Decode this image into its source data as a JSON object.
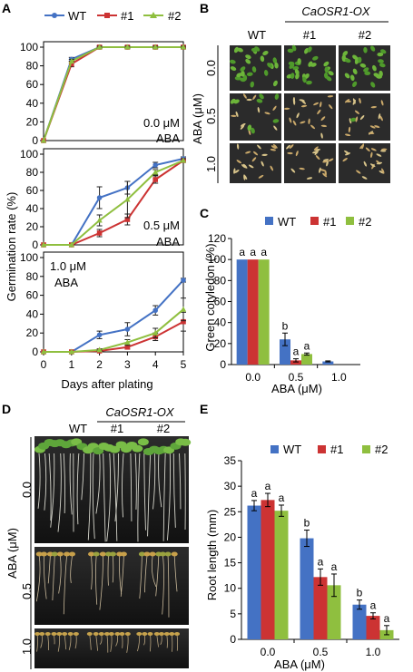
{
  "panels": {
    "A": "A",
    "B": "B",
    "C": "C",
    "D": "D",
    "E": "E"
  },
  "colors": {
    "WT": "#4472c4",
    "#1": "#cc3333",
    "#2": "#8fbf3f"
  },
  "panel_A": {
    "legend": [
      "WT",
      "#1",
      "#2"
    ],
    "ylabel": "Germination rate (%)",
    "xlabel": "Days after plating",
    "x_ticks": [
      "0",
      "1",
      "2",
      "3",
      "4",
      "5"
    ],
    "conditions": [
      {
        "label_line1": "0.0 μM",
        "label_line2": "ABA"
      },
      {
        "label_line1": "0.5 μM",
        "label_line2": "ABA"
      },
      {
        "label_line1": "1.0 μM",
        "label_line2": "ABA"
      }
    ]
  },
  "panel_B": {
    "header_group": "CaOSR1-OX",
    "columns": [
      "WT",
      "#1",
      "#2"
    ],
    "row_axis": "ABA (μM)",
    "rows": [
      "0.0",
      "0.5",
      "1.0"
    ]
  },
  "panel_C": {
    "legend": [
      "WT",
      "#1",
      "#2"
    ],
    "ylabel": "Green cotyledon (%)",
    "xlabel": "ABA (μM)"
  },
  "panel_D": {
    "header_group": "CaOSR1-OX",
    "columns": [
      "WT",
      "#1",
      "#2"
    ],
    "row_axis": "ABA (μM)",
    "rows": [
      "0.0",
      "0.5",
      "1.0"
    ]
  },
  "panel_E": {
    "legend": [
      "WT",
      "#1",
      "#2"
    ],
    "ylabel": "Root  length (mm)",
    "xlabel": "ABA (μM)"
  },
  "chart_data": [
    {
      "id": "A-0.0",
      "type": "line",
      "x": [
        0,
        1,
        2,
        3,
        4,
        5
      ],
      "ylim": [
        0,
        100
      ],
      "y_ticks": [
        0,
        20,
        40,
        60,
        80,
        100
      ],
      "series": [
        {
          "name": "WT",
          "values": [
            0,
            87,
            100,
            100,
            100,
            100
          ],
          "err": [
            0,
            2,
            1,
            1,
            1,
            1
          ]
        },
        {
          "name": "#1",
          "values": [
            0,
            82,
            100,
            100,
            100,
            100
          ],
          "err": [
            0,
            3,
            1,
            1,
            1,
            1
          ]
        },
        {
          "name": "#2",
          "values": [
            0,
            85,
            100,
            100,
            100,
            100
          ],
          "err": [
            0,
            2,
            1,
            1,
            1,
            1
          ]
        }
      ]
    },
    {
      "id": "A-0.5",
      "type": "line",
      "x": [
        0,
        1,
        2,
        3,
        4,
        5
      ],
      "ylim": [
        0,
        100
      ],
      "y_ticks": [
        0,
        20,
        40,
        60,
        80,
        100
      ],
      "series": [
        {
          "name": "WT",
          "values": [
            0,
            0,
            52,
            63,
            88,
            95
          ],
          "err": [
            0,
            0,
            12,
            7,
            3,
            2
          ]
        },
        {
          "name": "#1",
          "values": [
            0,
            0,
            13,
            28,
            72,
            93
          ],
          "err": [
            0,
            0,
            4,
            6,
            4,
            2
          ]
        },
        {
          "name": "#2",
          "values": [
            0,
            0,
            27,
            50,
            80,
            93
          ],
          "err": [
            0,
            0,
            6,
            20,
            3,
            2
          ]
        }
      ]
    },
    {
      "id": "A-1.0",
      "type": "line",
      "x": [
        0,
        1,
        2,
        3,
        4,
        5
      ],
      "ylim": [
        0,
        100
      ],
      "y_ticks": [
        0,
        20,
        40,
        60,
        80,
        100
      ],
      "series": [
        {
          "name": "WT",
          "values": [
            0,
            0,
            18,
            24,
            44,
            76
          ],
          "err": [
            0,
            0,
            4,
            7,
            5,
            2
          ]
        },
        {
          "name": "#1",
          "values": [
            0,
            0,
            1,
            5,
            16,
            32
          ],
          "err": [
            0,
            0,
            1,
            2,
            4,
            10
          ]
        },
        {
          "name": "#2",
          "values": [
            0,
            0,
            2,
            10,
            20,
            45
          ],
          "err": [
            0,
            0,
            1,
            3,
            5,
            12
          ]
        }
      ]
    },
    {
      "id": "C",
      "type": "bar",
      "categories": [
        "0.0",
        "0.5",
        "1.0"
      ],
      "ylim": [
        0,
        120
      ],
      "y_ticks": [
        0,
        20,
        40,
        60,
        80,
        100,
        120
      ],
      "series": [
        {
          "name": "WT",
          "values": [
            100,
            24,
            3
          ],
          "err": [
            0,
            6,
            0.5
          ],
          "labels": [
            "a",
            "b",
            ""
          ]
        },
        {
          "name": "#1",
          "values": [
            100,
            4,
            0
          ],
          "err": [
            0,
            1.5,
            0
          ],
          "labels": [
            "a",
            "a",
            ""
          ]
        },
        {
          "name": "#2",
          "values": [
            100,
            10,
            0
          ],
          "err": [
            0,
            1,
            0
          ],
          "labels": [
            "a",
            "a",
            ""
          ]
        }
      ]
    },
    {
      "id": "E",
      "type": "bar",
      "categories": [
        "0.0",
        "0.5",
        "1.0"
      ],
      "ylim": [
        0,
        35
      ],
      "y_ticks": [
        0,
        5,
        10,
        15,
        20,
        25,
        30,
        35
      ],
      "series": [
        {
          "name": "WT",
          "values": [
            26.2,
            19.8,
            6.8
          ],
          "err": [
            1.0,
            1.6,
            0.9
          ],
          "labels": [
            "a",
            "b",
            "b"
          ]
        },
        {
          "name": "#1",
          "values": [
            27.3,
            12.2,
            4.6
          ],
          "err": [
            1.3,
            1.6,
            0.6
          ],
          "labels": [
            "a",
            "a",
            "a"
          ]
        },
        {
          "name": "#2",
          "values": [
            25.2,
            10.6,
            1.8
          ],
          "err": [
            1.1,
            2.2,
            0.9
          ],
          "labels": [
            "a",
            "a",
            "a"
          ]
        }
      ]
    }
  ]
}
